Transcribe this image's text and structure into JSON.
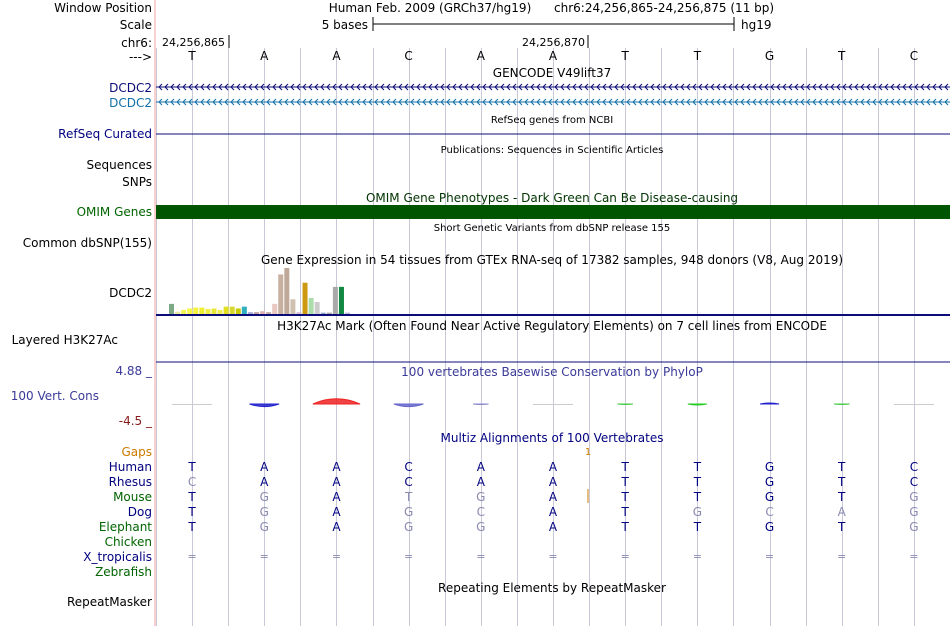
{
  "header": {
    "window_position_label": "Window Position",
    "assembly": "Human Feb. 2009 (GRCh37/hg19)",
    "position": "chr6:24,256,865-24,256,875 (11 bp)",
    "scale_label": "Scale",
    "scale_text": "5 bases",
    "scale_db": "hg19",
    "chrom_label": "chr6:",
    "coord_left": "24,256,865",
    "coord_mid": "24,256,870",
    "strand_label": "--->"
  },
  "bases": [
    "T",
    "A",
    "A",
    "C",
    "A",
    "A",
    "T",
    "T",
    "G",
    "T",
    "C"
  ],
  "tracks": {
    "gencode_title": "GENCODE V49lift37",
    "gene1_label": "DCDC2",
    "gene2_label": "DCDC2",
    "refseq_title": "RefSeq genes from NCBI",
    "refseq_label": "RefSeq Curated",
    "publications_title": "Publications: Sequences in Scientific Articles",
    "sequences_label": "Sequences",
    "snps_label": "SNPs",
    "omim_title": "OMIM Gene Phenotypes - Dark Green Can Be Disease-causing",
    "omim_label": "OMIM Genes",
    "dbsnp_title": "Short Genetic Variants from dbSNP release 155",
    "dbsnp_label": "Common dbSNP(155)",
    "gtex_title": "Gene Expression in 54 tissues from GTEx RNA-seq of 17382 samples, 948 donors (V8, Aug 2019)",
    "gtex_label": "DCDC2",
    "h3k27ac_title": "H3K27Ac Mark (Often Found Near Active Regulatory Elements) on 7 cell lines from ENCODE",
    "h3k27ac_label": "Layered H3K27Ac",
    "phylop_title": "100 vertebrates Basewise Conservation by PhyloP",
    "phylop_label": "100 Vert. Cons",
    "phylop_max": "4.88 _",
    "phylop_min": "-4.5 _",
    "multiz_title": "Multiz Alignments of 100 Vertebrates",
    "gaps_label": "Gaps",
    "gap_count": "1",
    "repeat_title": "Repeating Elements by RepeatMasker",
    "repeat_label": "RepeatMasker"
  },
  "gtex_bars": [
    {
      "value": 0.22,
      "color": "#7daa85"
    },
    {
      "value": 0.05,
      "color": "#e8e8a0"
    },
    {
      "value": 0.09,
      "color": "#f2f259"
    },
    {
      "value": 0.12,
      "color": "#f5f54a"
    },
    {
      "value": 0.14,
      "color": "#f4f440"
    },
    {
      "value": 0.14,
      "color": "#eeee33"
    },
    {
      "value": 0.11,
      "color": "#eeee44"
    },
    {
      "value": 0.12,
      "color": "#e8e838"
    },
    {
      "value": 0.09,
      "color": "#eeee55"
    },
    {
      "value": 0.16,
      "color": "#e0e020"
    },
    {
      "value": 0.16,
      "color": "#d8d830"
    },
    {
      "value": 0.12,
      "color": "#c8c800"
    },
    {
      "value": 0.16,
      "color": "#30b0c0"
    },
    {
      "value": 0.04,
      "color": "#a8a8d8"
    },
    {
      "value": 0.04,
      "color": "#c0a0a0"
    },
    {
      "value": 0.06,
      "color": "#e0b0b0"
    },
    {
      "value": 0.04,
      "color": "#c0a8a0"
    },
    {
      "value": 0.22,
      "color": "#e8c8c0"
    },
    {
      "value": 0.86,
      "color": "#c8b0a0"
    },
    {
      "value": 1.0,
      "color": "#c0a898"
    },
    {
      "value": 0.32,
      "color": "#d0c0b0"
    },
    {
      "value": 0.04,
      "color": "#d0c0d0"
    },
    {
      "value": 0.68,
      "color": "#cc9911"
    },
    {
      "value": 0.35,
      "color": "#aaddaa"
    },
    {
      "value": 0.26,
      "color": "#cccccc"
    },
    {
      "value": 0.03,
      "color": "#99aacc"
    },
    {
      "value": 0.03,
      "color": "#aaaaaa"
    },
    {
      "value": 0.59,
      "color": "#aaaaaa"
    },
    {
      "value": 0.59,
      "color": "#118844"
    },
    {
      "value": 0.03,
      "color": "#bbbbdd"
    }
  ],
  "phylop": [
    {
      "value": 0.0,
      "color": "#888888"
    },
    {
      "value": -0.5,
      "color": "#2222cc"
    },
    {
      "value": 1.0,
      "color": "#ee2222"
    },
    {
      "value": -0.5,
      "color": "#6666cc"
    },
    {
      "value": -0.1,
      "color": "#8888cc"
    },
    {
      "value": 0.0,
      "color": "#888888"
    },
    {
      "value": -0.1,
      "color": "#44cc44"
    },
    {
      "value": -0.2,
      "color": "#22cc22"
    },
    {
      "value": 0.2,
      "color": "#2222cc"
    },
    {
      "value": -0.1,
      "color": "#44cc44"
    },
    {
      "value": 0.0,
      "color": "#888888"
    }
  ],
  "species": [
    {
      "name": "Human",
      "color": "#000080",
      "bases": [
        "T",
        "A",
        "A",
        "C",
        "A",
        "A",
        "T",
        "T",
        "G",
        "T",
        "C"
      ],
      "dim": [
        false,
        false,
        false,
        false,
        false,
        false,
        false,
        false,
        false,
        false,
        false
      ]
    },
    {
      "name": "Rhesus",
      "color": "#000080",
      "bases": [
        "C",
        "A",
        "A",
        "C",
        "A",
        "A",
        "T",
        "T",
        "G",
        "T",
        "C"
      ],
      "dim": [
        true,
        false,
        false,
        false,
        false,
        false,
        false,
        false,
        false,
        false,
        false
      ]
    },
    {
      "name": "Mouse",
      "color": "#006400",
      "bases": [
        "T",
        "G",
        "A",
        "T",
        "G",
        "A",
        "T",
        "T",
        "G",
        "T",
        "G"
      ],
      "dim": [
        false,
        true,
        false,
        true,
        true,
        false,
        false,
        false,
        false,
        false,
        true
      ]
    },
    {
      "name": "Dog",
      "color": "#000080",
      "bases": [
        "T",
        "G",
        "A",
        "G",
        "C",
        "A",
        "T",
        "G",
        "C",
        "A",
        "G"
      ],
      "dim": [
        false,
        true,
        false,
        true,
        true,
        false,
        false,
        true,
        true,
        true,
        true
      ]
    },
    {
      "name": "Elephant",
      "color": "#006400",
      "bases": [
        "T",
        "G",
        "A",
        "G",
        "G",
        "A",
        "T",
        "T",
        "G",
        "T",
        "G"
      ],
      "dim": [
        false,
        true,
        false,
        true,
        true,
        false,
        false,
        false,
        false,
        false,
        true
      ]
    },
    {
      "name": "Chicken",
      "color": "#006400",
      "bases": [],
      "dim": []
    },
    {
      "name": "X_tropicalis",
      "color": "#000080",
      "bases": [
        "=",
        "=",
        "=",
        "=",
        "=",
        "=",
        "=",
        "=",
        "=",
        "=",
        "="
      ],
      "dim": [
        true,
        true,
        true,
        true,
        true,
        true,
        true,
        true,
        true,
        true,
        true
      ]
    },
    {
      "name": "Zebrafish",
      "color": "#006400",
      "bases": [],
      "dim": []
    }
  ],
  "colors": {
    "label_navy": "#000080",
    "gene_blue": "#0c0c78",
    "gencode_teal": "#1070a8",
    "omim_green": "#005500",
    "omim_title": "#003300",
    "phylop_blue": "#3a3a99",
    "phylop_neg": "#8b1a1a",
    "gaps_orange": "#cc7a00",
    "grid": "#c8c8d8",
    "sidebar_border": "#f0a0a0"
  }
}
